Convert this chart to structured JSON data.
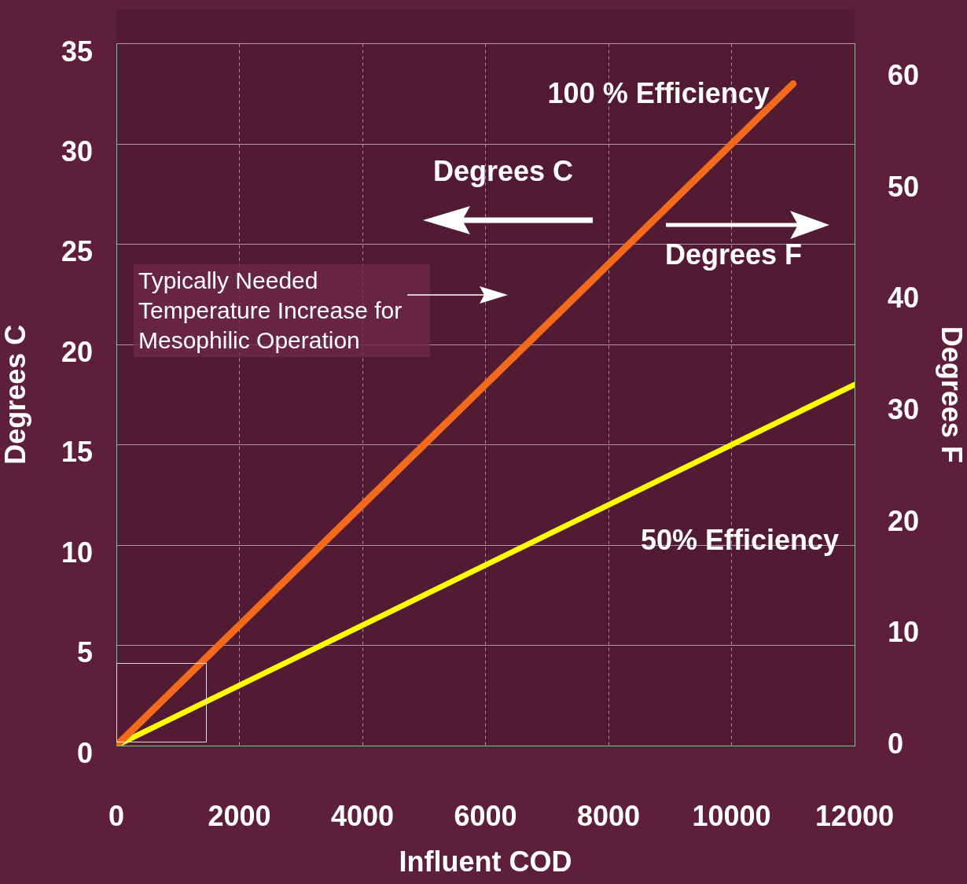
{
  "chart_data": {
    "type": "line",
    "xlabel": "Influent COD",
    "ylabel": "Degrees C",
    "y2label": "Degrees F",
    "x": [
      0,
      12000
    ],
    "series": [
      {
        "name": "100 % Efficiency",
        "color": "#f26a1b",
        "x": [
          0,
          11000
        ],
        "values": [
          0,
          33
        ]
      },
      {
        "name": "50% Efficiency",
        "color": "#ffff00",
        "values": [
          0,
          18
        ]
      }
    ],
    "xlim": [
      0,
      12000
    ],
    "xticks": [
      0,
      2000,
      4000,
      6000,
      8000,
      10000,
      12000
    ],
    "ylim": [
      0,
      35
    ],
    "yticks": [
      0,
      5,
      10,
      15,
      20,
      25,
      30,
      35
    ],
    "y2lim": [
      0,
      63
    ],
    "y2ticks": [
      0,
      10,
      20,
      30,
      40,
      50,
      60
    ],
    "annotations": [
      "Degrees C",
      "Degrees F",
      "Typically Needed Temperature Increase for Mesophilic Operation"
    ],
    "grid": true,
    "line_style": "solid",
    "marker": "none",
    "legend": false
  }
}
